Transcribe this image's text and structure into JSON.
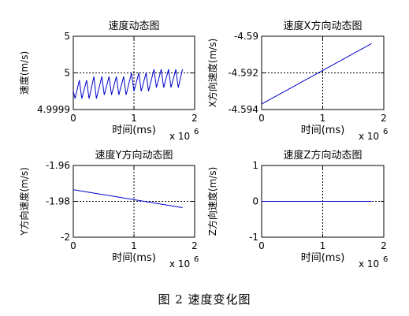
{
  "figure": {
    "caption": "图 2  速度变化图",
    "line_color": "#0000cc",
    "grid_color": "#000000"
  },
  "chart_data": [
    {
      "type": "line",
      "title": "速度动态图",
      "xlabel": "时间(ms)",
      "ylabel": "速度(m/s)",
      "x_exponent_label": "x 10",
      "x_exponent": "6",
      "xlim": [
        0,
        2
      ],
      "ylim": [
        4.9999,
        5.0001
      ],
      "xticks": [
        0,
        1,
        2
      ],
      "xtick_labels": [
        "0",
        "1",
        "2"
      ],
      "yticks": [
        4.9999,
        5.0,
        5.0001
      ],
      "ytick_labels": [
        "4.9999",
        "5",
        "5"
      ],
      "grid": "dotted-at-center",
      "series": [
        {
          "x": [
            0,
            0.03,
            0.1,
            0.14,
            0.22,
            0.26,
            0.34,
            0.38,
            0.47,
            0.51,
            0.59,
            0.63,
            0.71,
            0.75,
            0.83,
            0.87,
            0.96,
            1.0,
            1.08,
            1.12,
            1.2,
            1.24,
            1.33,
            1.37,
            1.45,
            1.49,
            1.57,
            1.61,
            1.69,
            1.73,
            1.8
          ],
          "y": [
            4.99995,
            4.99993,
            4.99998,
            4.99993,
            4.99998,
            4.99993,
            4.99999,
            4.99993,
            4.99999,
            4.99994,
            4.99999,
            4.99994,
            4.99999,
            4.99994,
            4.99999,
            4.99994,
            5.0,
            4.99995,
            5.0,
            4.99995,
            5.0,
            4.99995,
            5.00001,
            4.99996,
            5.00001,
            4.99996,
            5.00001,
            4.99996,
            5.00001,
            4.99996,
            5.00001
          ]
        }
      ]
    },
    {
      "type": "line",
      "title": "速度X方向动态图",
      "xlabel": "时间(ms)",
      "ylabel": "X方向速度(m/s)",
      "x_exponent_label": "x 10",
      "x_exponent": "6",
      "xlim": [
        0,
        2
      ],
      "ylim": [
        -4.594,
        -4.59
      ],
      "xticks": [
        0,
        1,
        2
      ],
      "xtick_labels": [
        "0",
        "1",
        "2"
      ],
      "yticks": [
        -4.594,
        -4.592,
        -4.59
      ],
      "ytick_labels": [
        "-4.594",
        "-4.592",
        "-4.59"
      ],
      "grid": "dotted-at-center",
      "series": [
        {
          "x": [
            0,
            1.8
          ],
          "y": [
            -4.5937,
            -4.5904
          ]
        }
      ]
    },
    {
      "type": "line",
      "title": "速度Y方向动态图",
      "xlabel": "时间(ms)",
      "ylabel": "Y方向速度(m/s)",
      "x_exponent_label": "x 10",
      "x_exponent": "6",
      "xlim": [
        0,
        2
      ],
      "ylim": [
        -2.0,
        -1.96
      ],
      "xticks": [
        0,
        1,
        2
      ],
      "xtick_labels": [
        "0",
        "1",
        "2"
      ],
      "yticks": [
        -2.0,
        -1.98,
        -1.96
      ],
      "ytick_labels": [
        "-2",
        "-1.98",
        "-1.96"
      ],
      "grid": "dotted-at-center",
      "series": [
        {
          "x": [
            0,
            1.8
          ],
          "y": [
            -1.9735,
            -1.9835
          ]
        }
      ]
    },
    {
      "type": "line",
      "title": "速度Z方向动态图",
      "xlabel": "时间(ms)",
      "ylabel": "Z方向速度(m/s)",
      "x_exponent_label": "x 10",
      "x_exponent": "6",
      "xlim": [
        0,
        2
      ],
      "ylim": [
        -1,
        1
      ],
      "xticks": [
        0,
        1,
        2
      ],
      "xtick_labels": [
        "0",
        "1",
        "2"
      ],
      "yticks": [
        -1,
        0,
        1
      ],
      "ytick_labels": [
        "-1",
        "0",
        "1"
      ],
      "grid": "dotted-at-center",
      "series": [
        {
          "x": [
            0,
            1.8
          ],
          "y": [
            0,
            0
          ]
        }
      ]
    }
  ]
}
